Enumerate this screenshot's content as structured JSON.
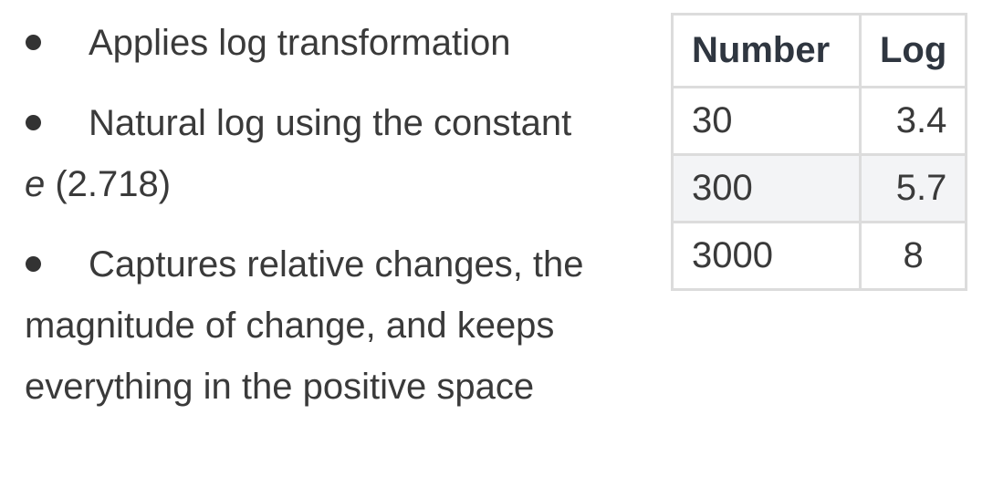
{
  "bullets": [
    {
      "text": "Applies log transformation"
    },
    {
      "text": "Natural log using the constant",
      "italic": "e",
      "tail": " (2.718)"
    },
    {
      "text": "Captures relative changes, the magnitude of change, and keeps everything in the positive space"
    }
  ],
  "table": {
    "headers": [
      "Number",
      "Log"
    ],
    "rows": [
      [
        "30",
        "3.4"
      ],
      [
        "300",
        "5.7"
      ],
      [
        "3000",
        "8"
      ]
    ]
  },
  "colors": {
    "text": "#3a3a3a",
    "header_text": "#2f3640",
    "border": "#dcdcdc",
    "alt_row": "#f3f4f6"
  }
}
